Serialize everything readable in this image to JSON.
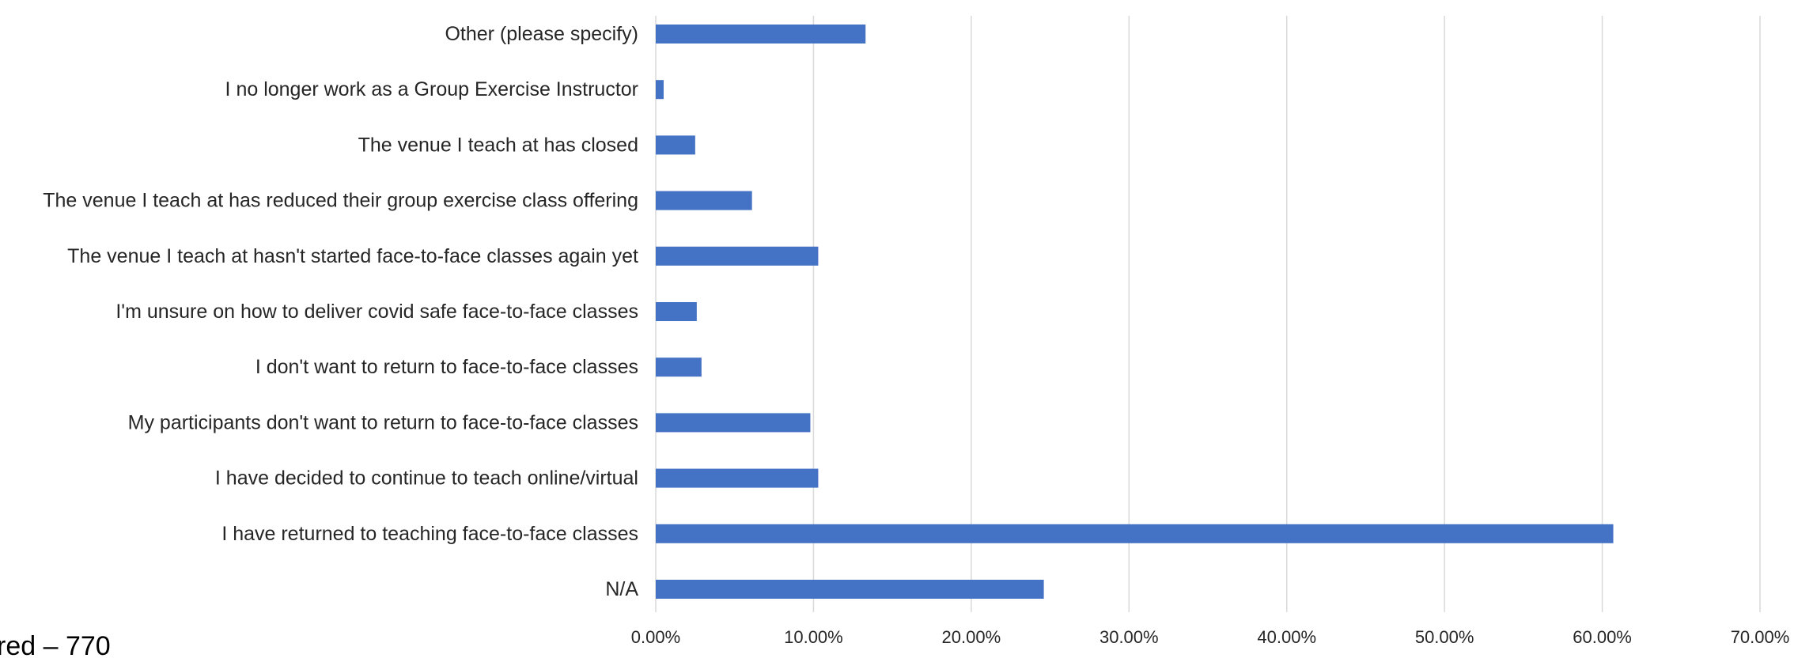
{
  "chart_data": {
    "type": "bar",
    "orientation": "horizontal",
    "categories": [
      "Other (please specify)",
      "I no longer work as a Group Exercise Instructor",
      "The venue I teach at has closed",
      "The venue I teach at has reduced their group exercise class offering",
      "The venue I teach at hasn't started face-to-face classes again yet",
      "I'm unsure on how to deliver covid safe face-to-face classes",
      "I don't want to return to face-to-face classes",
      "My participants don't want to return to face-to-face classes",
      "I have decided to continue to teach online/virtual",
      "I have returned to teaching face-to-face classes",
      "N/A"
    ],
    "values": [
      13.3,
      0.5,
      2.5,
      6.1,
      10.3,
      2.6,
      2.9,
      9.8,
      10.3,
      60.7,
      24.6
    ],
    "xlim": [
      0,
      70
    ],
    "xticks": [
      "0.00%",
      "10.00%",
      "20.00%",
      "30.00%",
      "40.00%",
      "50.00%",
      "60.00%",
      "70.00%"
    ],
    "grid": "vertical",
    "bar_color": "#4472C4",
    "grid_color": "#D9D9D9"
  },
  "footnote": "red – 770"
}
